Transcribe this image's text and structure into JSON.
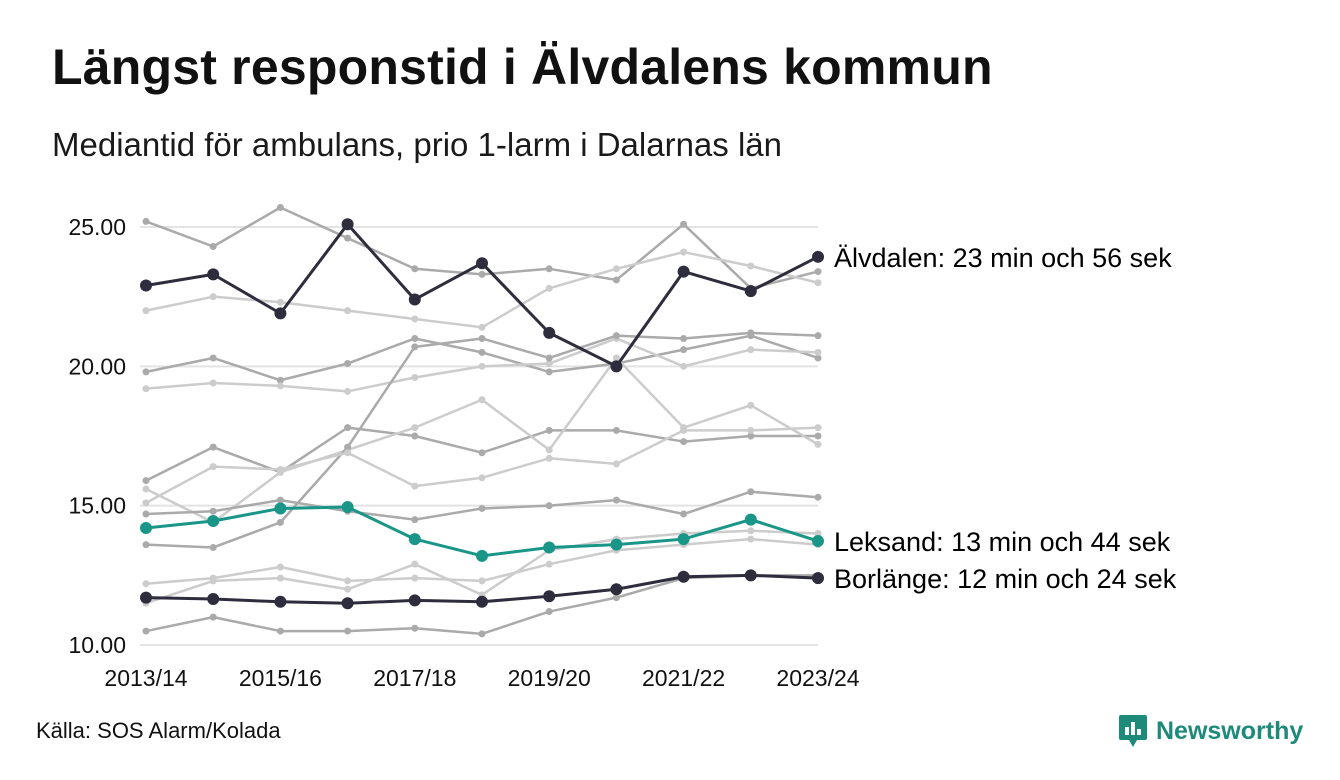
{
  "chart_data": {
    "type": "line",
    "title": "Längst responstid i Älvdalens kommun",
    "subtitle": "Mediantid för ambulans, prio 1-larm i Dalarnas län",
    "x": [
      "2013/14",
      "2014/15",
      "2015/16",
      "2016/17",
      "2017/18",
      "2018/19",
      "2019/20",
      "2020/21",
      "2021/22",
      "2022/23",
      "2023/24"
    ],
    "x_tick_labels": [
      "2013/14",
      "2015/16",
      "2017/18",
      "2019/20",
      "2021/22",
      "2023/24"
    ],
    "y_ticks": [
      "10.00",
      "15.00",
      "20.00",
      "25.00"
    ],
    "ylim": [
      10,
      25
    ],
    "grid": true,
    "source": "Källa: SOS Alarm/Kolada",
    "brand": "Newsworthy",
    "colors": {
      "highlight_dark": "#2e2d3d",
      "highlight_teal": "#1a9688",
      "background_medium": "#aaaaaa",
      "background_light": "#cccccc",
      "grid": "#e3e3e3",
      "brand": "#1d8a7a"
    },
    "highlighted_series": [
      {
        "key": "alvdalen",
        "label": "Älvdalen: 23 min och 56 sek",
        "color": "#2e2d3d",
        "values": [
          22.9,
          23.3,
          21.9,
          25.1,
          22.4,
          23.7,
          21.2,
          20.0,
          23.4,
          22.7,
          23.93
        ]
      },
      {
        "key": "leksand",
        "label": "Leksand: 13 min och 44 sek",
        "color": "#1a9688",
        "values": [
          14.2,
          14.45,
          14.9,
          14.95,
          13.8,
          13.2,
          13.5,
          13.6,
          13.8,
          14.5,
          13.73
        ]
      },
      {
        "key": "borlange",
        "label": "Borlänge: 12 min och 24 sek",
        "color": "#2e2d3d",
        "values": [
          11.7,
          11.65,
          11.55,
          11.5,
          11.6,
          11.55,
          11.75,
          12.0,
          12.45,
          12.5,
          12.4
        ]
      }
    ],
    "background_series": [
      {
        "color": "#aaaaaa",
        "values": [
          25.2,
          24.3,
          25.7,
          24.6,
          23.5,
          23.3,
          23.5,
          23.1,
          25.1,
          22.8,
          23.4
        ]
      },
      {
        "color": "#cccccc",
        "values": [
          22.0,
          22.5,
          22.3,
          22.0,
          21.7,
          21.4,
          22.8,
          23.5,
          24.1,
          23.6,
          23.0
        ]
      },
      {
        "color": "#aaaaaa",
        "values": [
          19.8,
          20.3,
          19.5,
          20.1,
          21.0,
          20.5,
          19.8,
          20.1,
          20.6,
          21.1,
          20.3
        ]
      },
      {
        "color": "#cccccc",
        "values": [
          19.2,
          19.4,
          19.3,
          19.1,
          19.6,
          20.0,
          20.1,
          21.0,
          20.0,
          20.6,
          20.5
        ]
      },
      {
        "color": "#aaaaaa",
        "values": [
          15.9,
          17.1,
          16.2,
          17.8,
          17.5,
          16.9,
          17.7,
          17.7,
          17.3,
          17.5,
          17.5
        ]
      },
      {
        "color": "#cccccc",
        "values": [
          15.6,
          14.4,
          16.2,
          17.0,
          17.8,
          18.8,
          17.0,
          20.3,
          17.8,
          18.6,
          17.2
        ]
      },
      {
        "color": "#aaaaaa",
        "values": [
          13.6,
          13.5,
          14.4,
          17.1,
          20.7,
          21.0,
          20.3,
          21.1,
          21.0,
          21.2,
          21.1
        ]
      },
      {
        "color": "#cccccc",
        "values": [
          15.1,
          16.4,
          16.3,
          16.9,
          15.7,
          16.0,
          16.7,
          16.5,
          17.7,
          17.7,
          17.8
        ]
      },
      {
        "color": "#aaaaaa",
        "values": [
          14.7,
          14.8,
          15.2,
          14.8,
          14.5,
          14.9,
          15.0,
          15.2,
          14.7,
          15.5,
          15.3
        ]
      },
      {
        "color": "#cccccc",
        "values": [
          12.2,
          12.4,
          12.8,
          12.3,
          12.4,
          12.3,
          12.9,
          13.4,
          13.6,
          13.8,
          13.6
        ]
      },
      {
        "color": "#cccccc",
        "values": [
          11.5,
          12.3,
          12.4,
          12.0,
          12.9,
          11.8,
          13.4,
          13.8,
          14.0,
          14.1,
          14.0
        ]
      },
      {
        "color": "#aaaaaa",
        "values": [
          10.5,
          11.0,
          10.5,
          10.5,
          10.6,
          10.4,
          11.2,
          11.7,
          12.4,
          12.5,
          12.5
        ]
      }
    ]
  }
}
